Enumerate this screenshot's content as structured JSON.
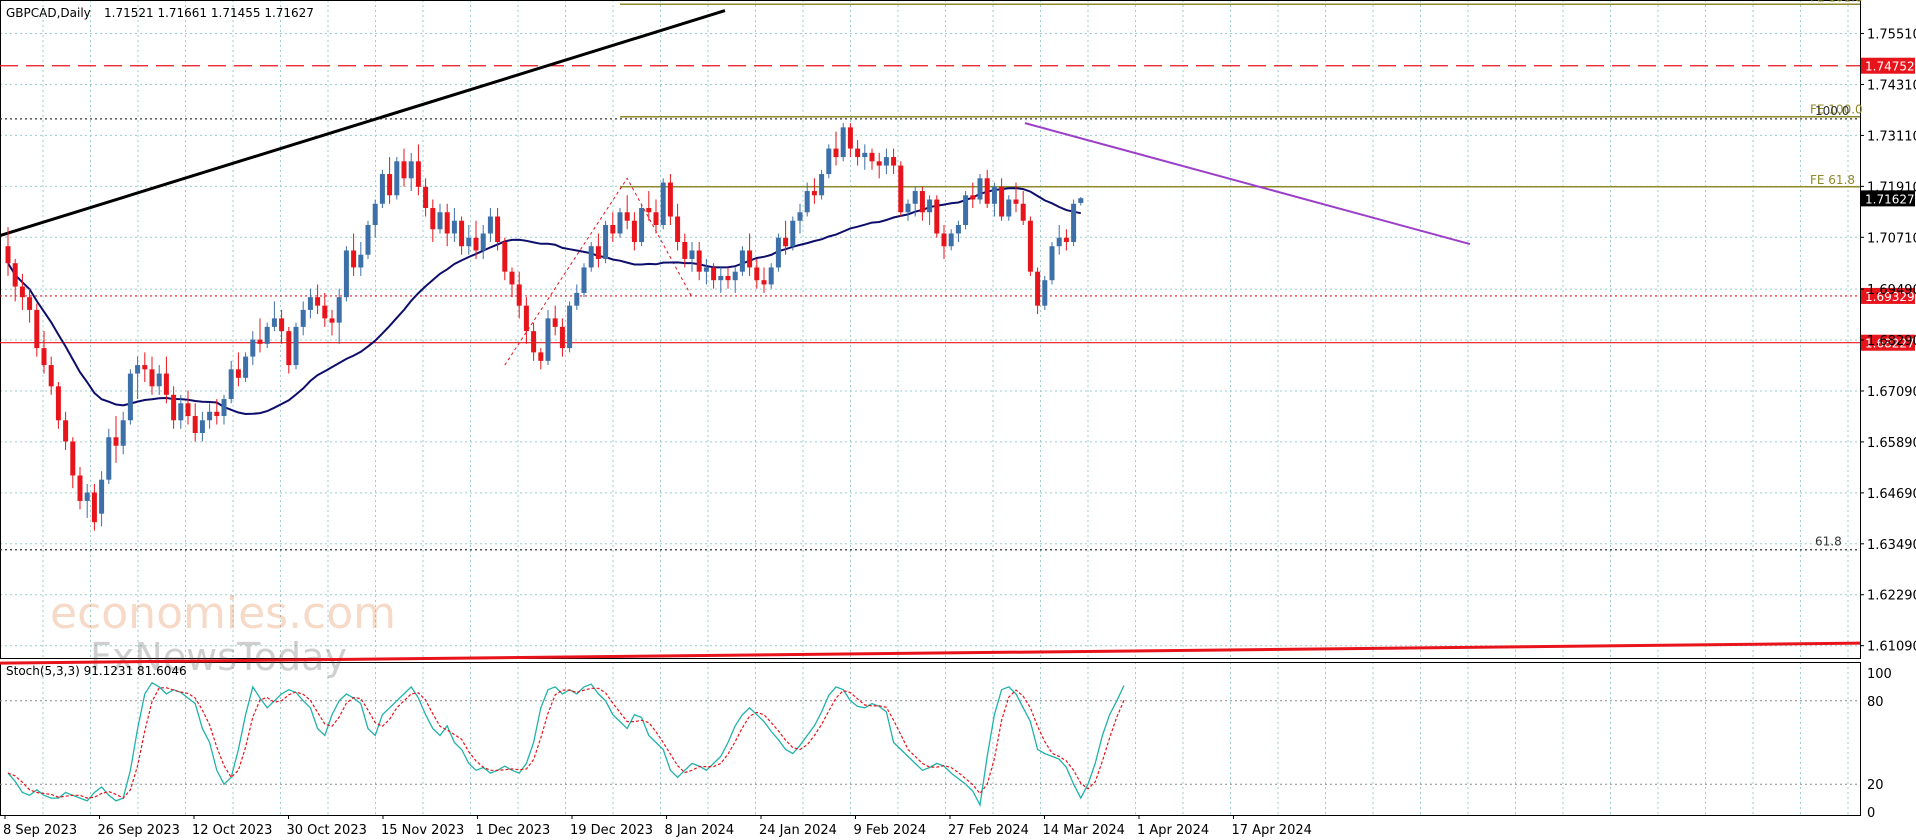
{
  "header": {
    "symbol": "GBPCAD,Daily",
    "ohlc": "1.71521 1.71661 1.71455 1.71627"
  },
  "stoch_header": "Stoch(5,3,3) 91.1231 81.6046",
  "watermark": {
    "line1": "economies.com",
    "line2": "FxNewsToday"
  },
  "colors": {
    "bull": "#3d6fa8",
    "bear": "#e8141c",
    "ma": "#0d0d6b",
    "grid": "#9ccccc",
    "trend_purple": "#9b3fc9",
    "fib": "#8e8a2a",
    "red_level": "#e8141c",
    "black_trend": "#000000",
    "stoch_k": "#20b2aa",
    "stoch_d": "#e8141c"
  },
  "chart_data": {
    "type": "candlestick",
    "title": "GBPCAD,Daily",
    "price_ylim": [
      1.608,
      1.763
    ],
    "price_ticks": [
      "1.75510",
      "1.74310",
      "1.73110",
      "1.71910",
      "1.70710",
      "1.69490",
      "1.68290",
      "1.67090",
      "1.65890",
      "1.64690",
      "1.63490",
      "1.62290",
      "1.61090"
    ],
    "x_labels": [
      "8 Sep 2023",
      "26 Sep 2023",
      "12 Oct 2023",
      "30 Oct 2023",
      "15 Nov 2023",
      "1 Dec 2023",
      "19 Dec 2023",
      "8 Jan 2024",
      "24 Jan 2024",
      "9 Feb 2024",
      "27 Feb 2024",
      "14 Mar 2024",
      "1 Apr 2024",
      "17 Apr 2024"
    ],
    "current_price": "1.71627",
    "levels": [
      {
        "price": 1.74752,
        "label": "1.74752",
        "style": "red-dashed"
      },
      {
        "price": 1.69329,
        "label": "1.69329",
        "style": "red-dotted"
      },
      {
        "price": 1.68227,
        "label": "1.68227",
        "style": "red-solid"
      }
    ],
    "fib_levels": [
      {
        "price": 1.762,
        "label": "FE 161.8"
      },
      {
        "price": 1.7355,
        "label": "FE 100.0"
      },
      {
        "price": 1.719,
        "label": "FE 61.8"
      }
    ],
    "dotted_levels": [
      {
        "price": 1.735,
        "label": "100.0"
      },
      {
        "price": 1.6335,
        "label": "61.8"
      }
    ],
    "candles": [
      [
        1.705,
        1.7095,
        1.698,
        1.701
      ],
      [
        1.701,
        1.702,
        1.692,
        1.6955
      ],
      [
        1.6955,
        1.6985,
        1.69,
        1.693
      ],
      [
        1.693,
        1.695,
        1.687,
        1.69
      ],
      [
        1.69,
        1.6915,
        1.679,
        1.681
      ],
      [
        1.681,
        1.685,
        1.675,
        1.677
      ],
      [
        1.677,
        1.679,
        1.67,
        1.672
      ],
      [
        1.672,
        1.673,
        1.662,
        1.664
      ],
      [
        1.664,
        1.666,
        1.657,
        1.659
      ],
      [
        1.659,
        1.66,
        1.648,
        1.651
      ],
      [
        1.651,
        1.653,
        1.643,
        1.645
      ],
      [
        1.645,
        1.649,
        1.641,
        1.647
      ],
      [
        1.647,
        1.649,
        1.638,
        1.64
      ],
      [
        1.642,
        1.652,
        1.639,
        1.65
      ],
      [
        1.65,
        1.662,
        1.649,
        1.66
      ],
      [
        1.66,
        1.665,
        1.654,
        1.658
      ],
      [
        1.658,
        1.666,
        1.656,
        1.664
      ],
      [
        1.664,
        1.676,
        1.663,
        1.675
      ],
      [
        1.675,
        1.679,
        1.669,
        1.677
      ],
      [
        1.677,
        1.68,
        1.673,
        1.676
      ],
      [
        1.676,
        1.679,
        1.67,
        1.672
      ],
      [
        1.672,
        1.677,
        1.67,
        1.675
      ],
      [
        1.675,
        1.679,
        1.668,
        1.67
      ],
      [
        1.67,
        1.672,
        1.662,
        1.664
      ],
      [
        1.664,
        1.67,
        1.662,
        1.668
      ],
      [
        1.668,
        1.671,
        1.663,
        1.665
      ],
      [
        1.665,
        1.668,
        1.659,
        1.661
      ],
      [
        1.661,
        1.666,
        1.659,
        1.664
      ],
      [
        1.664,
        1.668,
        1.662,
        1.666
      ],
      [
        1.666,
        1.669,
        1.663,
        1.665
      ],
      [
        1.665,
        1.67,
        1.663,
        1.669
      ],
      [
        1.669,
        1.678,
        1.668,
        1.676
      ],
      [
        1.676,
        1.68,
        1.672,
        1.674
      ],
      [
        1.674,
        1.68,
        1.673,
        1.679
      ],
      [
        1.679,
        1.685,
        1.677,
        1.683
      ],
      [
        1.683,
        1.688,
        1.68,
        1.682
      ],
      [
        1.682,
        1.687,
        1.681,
        1.686
      ],
      [
        1.686,
        1.692,
        1.685,
        1.688
      ],
      [
        1.688,
        1.69,
        1.682,
        1.685
      ],
      [
        1.685,
        1.686,
        1.675,
        1.677
      ],
      [
        1.677,
        1.687,
        1.676,
        1.686
      ],
      [
        1.686,
        1.692,
        1.684,
        1.69
      ],
      [
        1.69,
        1.695,
        1.688,
        1.693
      ],
      [
        1.693,
        1.696,
        1.689,
        1.691
      ],
      [
        1.691,
        1.694,
        1.686,
        1.688
      ],
      [
        1.688,
        1.69,
        1.684,
        1.687
      ],
      [
        1.687,
        1.695,
        1.682,
        1.693
      ],
      [
        1.693,
        1.705,
        1.692,
        1.704
      ],
      [
        1.704,
        1.708,
        1.698,
        1.7
      ],
      [
        1.7,
        1.706,
        1.698,
        1.703
      ],
      [
        1.703,
        1.711,
        1.702,
        1.71
      ],
      [
        1.71,
        1.716,
        1.707,
        1.715
      ],
      [
        1.715,
        1.723,
        1.714,
        1.722
      ],
      [
        1.722,
        1.726,
        1.715,
        1.717
      ],
      [
        1.717,
        1.726,
        1.716,
        1.725
      ],
      [
        1.725,
        1.728,
        1.719,
        1.721
      ],
      [
        1.721,
        1.727,
        1.718,
        1.725
      ],
      [
        1.725,
        1.729,
        1.717,
        1.719
      ],
      [
        1.719,
        1.721,
        1.712,
        1.714
      ],
      [
        1.714,
        1.716,
        1.706,
        1.709
      ],
      [
        1.709,
        1.715,
        1.708,
        1.713
      ],
      [
        1.713,
        1.715,
        1.705,
        1.708
      ],
      [
        1.708,
        1.714,
        1.706,
        1.711
      ],
      [
        1.711,
        1.712,
        1.703,
        1.705
      ],
      [
        1.705,
        1.71,
        1.703,
        1.707
      ],
      [
        1.707,
        1.711,
        1.702,
        1.704
      ],
      [
        1.704,
        1.71,
        1.702,
        1.708
      ],
      [
        1.708,
        1.714,
        1.706,
        1.712
      ],
      [
        1.712,
        1.714,
        1.704,
        1.706
      ],
      [
        1.706,
        1.707,
        1.697,
        1.699
      ],
      [
        1.699,
        1.7,
        1.693,
        1.696
      ],
      [
        1.696,
        1.699,
        1.688,
        1.691
      ],
      [
        1.691,
        1.693,
        1.682,
        1.685
      ],
      [
        1.685,
        1.687,
        1.678,
        1.68
      ],
      [
        1.68,
        1.681,
        1.676,
        1.678
      ],
      [
        1.678,
        1.69,
        1.677,
        1.688
      ],
      [
        1.688,
        1.691,
        1.684,
        1.686
      ],
      [
        1.686,
        1.688,
        1.679,
        1.681
      ],
      [
        1.681,
        1.692,
        1.68,
        1.691
      ],
      [
        1.691,
        1.696,
        1.69,
        1.694
      ],
      [
        1.694,
        1.701,
        1.693,
        1.7
      ],
      [
        1.7,
        1.706,
        1.699,
        1.705
      ],
      [
        1.705,
        1.708,
        1.7,
        1.702
      ],
      [
        1.702,
        1.711,
        1.701,
        1.71
      ],
      [
        1.71,
        1.713,
        1.706,
        1.708
      ],
      [
        1.708,
        1.714,
        1.707,
        1.713
      ],
      [
        1.713,
        1.717,
        1.709,
        1.711
      ],
      [
        1.711,
        1.713,
        1.704,
        1.706
      ],
      [
        1.706,
        1.715,
        1.705,
        1.714
      ],
      [
        1.714,
        1.718,
        1.711,
        1.713
      ],
      [
        1.713,
        1.716,
        1.708,
        1.71
      ],
      [
        1.71,
        1.721,
        1.709,
        1.72
      ],
      [
        1.72,
        1.722,
        1.71,
        1.712
      ],
      [
        1.712,
        1.715,
        1.704,
        1.706
      ],
      [
        1.706,
        1.708,
        1.7,
        1.702
      ],
      [
        1.702,
        1.706,
        1.699,
        1.704
      ],
      [
        1.704,
        1.706,
        1.697,
        1.699
      ],
      [
        1.699,
        1.702,
        1.696,
        1.7
      ],
      [
        1.7,
        1.701,
        1.695,
        1.697
      ],
      [
        1.697,
        1.7,
        1.694,
        1.698
      ],
      [
        1.698,
        1.7,
        1.695,
        1.697
      ],
      [
        1.697,
        1.7,
        1.694,
        1.699
      ],
      [
        1.699,
        1.705,
        1.698,
        1.704
      ],
      [
        1.704,
        1.708,
        1.698,
        1.7
      ],
      [
        1.7,
        1.702,
        1.695,
        1.697
      ],
      [
        1.697,
        1.7,
        1.694,
        1.696
      ],
      [
        1.696,
        1.701,
        1.695,
        1.7
      ],
      [
        1.7,
        1.708,
        1.699,
        1.707
      ],
      [
        1.707,
        1.711,
        1.703,
        1.705
      ],
      [
        1.705,
        1.712,
        1.704,
        1.711
      ],
      [
        1.711,
        1.715,
        1.708,
        1.713
      ],
      [
        1.713,
        1.72,
        1.712,
        1.718
      ],
      [
        1.718,
        1.721,
        1.715,
        1.717
      ],
      [
        1.717,
        1.723,
        1.716,
        1.722
      ],
      [
        1.722,
        1.729,
        1.721,
        1.728
      ],
      [
        1.728,
        1.732,
        1.724,
        1.726
      ],
      [
        1.726,
        1.734,
        1.725,
        1.733
      ],
      [
        1.733,
        1.734,
        1.726,
        1.728
      ],
      [
        1.728,
        1.73,
        1.724,
        1.726
      ],
      [
        1.726,
        1.729,
        1.723,
        1.727
      ],
      [
        1.727,
        1.728,
        1.723,
        1.725
      ],
      [
        1.725,
        1.727,
        1.721,
        1.724
      ],
      [
        1.724,
        1.728,
        1.722,
        1.726
      ],
      [
        1.726,
        1.728,
        1.722,
        1.724
      ],
      [
        1.724,
        1.725,
        1.712,
        1.713
      ],
      [
        1.713,
        1.716,
        1.711,
        1.715
      ],
      [
        1.715,
        1.719,
        1.712,
        1.718
      ],
      [
        1.718,
        1.719,
        1.711,
        1.713
      ],
      [
        1.713,
        1.717,
        1.71,
        1.716
      ],
      [
        1.716,
        1.717,
        1.707,
        1.708
      ],
      [
        1.708,
        1.71,
        1.702,
        1.705
      ],
      [
        1.705,
        1.709,
        1.704,
        1.708
      ],
      [
        1.708,
        1.711,
        1.706,
        1.71
      ],
      [
        1.71,
        1.718,
        1.709,
        1.717
      ],
      [
        1.717,
        1.72,
        1.714,
        1.716
      ],
      [
        1.716,
        1.722,
        1.715,
        1.721
      ],
      [
        1.721,
        1.723,
        1.714,
        1.715
      ],
      [
        1.715,
        1.72,
        1.712,
        1.719
      ],
      [
        1.719,
        1.721,
        1.711,
        1.712
      ],
      [
        1.712,
        1.717,
        1.711,
        1.716
      ],
      [
        1.716,
        1.72,
        1.713,
        1.715
      ],
      [
        1.715,
        1.718,
        1.71,
        1.711
      ],
      [
        1.711,
        1.712,
        1.698,
        1.699
      ],
      [
        1.699,
        1.7,
        1.689,
        1.691
      ],
      [
        1.691,
        1.698,
        1.69,
        1.697
      ],
      [
        1.697,
        1.706,
        1.696,
        1.705
      ],
      [
        1.705,
        1.71,
        1.703,
        1.707
      ],
      [
        1.707,
        1.709,
        1.704,
        1.706
      ],
      [
        1.706,
        1.716,
        1.705,
        1.715
      ],
      [
        1.7152,
        1.7166,
        1.7146,
        1.7163
      ]
    ],
    "stochastic": {
      "label": "Stoch(5,3,3)",
      "k_value": "91.1231",
      "d_value": "81.6046",
      "ylim": [
        0,
        100
      ],
      "levels": [
        20,
        80
      ],
      "ticks": [
        "100",
        "80",
        "20",
        "0"
      ],
      "k": [
        28,
        22,
        14,
        12,
        16,
        12,
        10,
        10,
        14,
        12,
        10,
        8,
        14,
        18,
        12,
        8,
        10,
        30,
        60,
        85,
        93,
        90,
        85,
        88,
        86,
        82,
        78,
        60,
        50,
        30,
        20,
        25,
        45,
        70,
        90,
        82,
        75,
        80,
        85,
        88,
        86,
        80,
        75,
        60,
        55,
        70,
        80,
        85,
        82,
        78,
        60,
        55,
        70,
        75,
        80,
        85,
        90,
        82,
        70,
        60,
        55,
        62,
        50,
        45,
        35,
        30,
        32,
        28,
        30,
        33,
        30,
        28,
        35,
        50,
        75,
        88,
        90,
        85,
        88,
        85,
        90,
        92,
        85,
        80,
        70,
        65,
        60,
        70,
        68,
        55,
        50,
        45,
        30,
        25,
        30,
        35,
        33,
        30,
        35,
        40,
        50,
        62,
        70,
        75,
        70,
        65,
        58,
        52,
        45,
        42,
        48,
        55,
        62,
        72,
        84,
        90,
        88,
        80,
        76,
        75,
        78,
        76,
        72,
        50,
        45,
        40,
        35,
        30,
        32,
        35,
        33,
        28,
        24,
        20,
        15,
        5,
        40,
        70,
        88,
        90,
        85,
        75,
        65,
        45,
        42,
        40,
        38,
        32,
        20,
        10,
        20,
        35,
        55,
        70,
        80,
        91
      ]
    }
  }
}
